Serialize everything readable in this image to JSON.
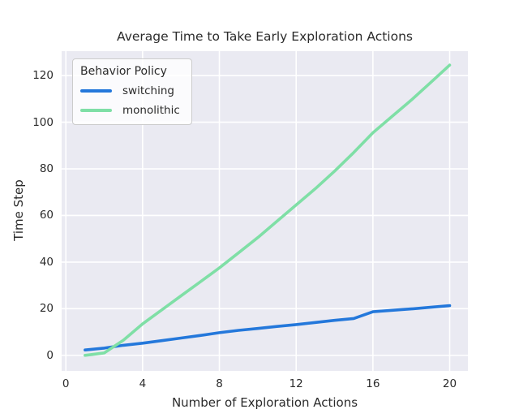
{
  "figure": {
    "title": "Average Time to Take Early Exploration Actions",
    "xlabel": "Number of Exploration Actions",
    "ylabel": "Time Step",
    "legend_title": "Behavior Policy"
  },
  "colors": {
    "plot_background": "#eaeaf2",
    "grid": "#ffffff",
    "figure_background": "#ffffff",
    "text": "#2b2b2b",
    "switching_blue": "#2478db",
    "monolithic_green": "#7fdfa6"
  },
  "chart_data": {
    "type": "line",
    "title": "Average Time to Take Early Exploration Actions",
    "xlabel": "Number of Exploration Actions",
    "ylabel": "Time Step",
    "legend_title": "Behavior Policy",
    "legend_position": "upper left",
    "grid": true,
    "x": [
      1,
      2,
      3,
      4,
      5,
      6,
      7,
      8,
      9,
      10,
      11,
      12,
      13,
      14,
      15,
      16,
      17,
      18,
      19,
      20
    ],
    "series": [
      {
        "name": "switching",
        "color": "#2478db",
        "values": [
          2.3,
          3.1,
          4.3,
          5.2,
          6.3,
          7.4,
          8.5,
          9.7,
          10.7,
          11.5,
          12.4,
          13.2,
          14.1,
          15.0,
          15.8,
          18.7,
          19.3,
          19.9,
          20.6,
          21.3
        ]
      },
      {
        "name": "monolithic",
        "color": "#7fdfa6",
        "values": [
          0,
          1,
          6.5,
          13.5,
          19.5,
          25.5,
          31.5,
          37.5,
          44,
          50.5,
          57.5,
          64.5,
          71.5,
          79,
          87,
          95.5,
          102.5,
          109.5,
          117,
          124.5
        ]
      }
    ],
    "xticks": [
      0,
      4,
      8,
      12,
      16,
      20
    ],
    "yticks": [
      0,
      20,
      40,
      60,
      80,
      100,
      120
    ],
    "xlim": [
      -0.22,
      20.95
    ],
    "ylim": [
      -6.7,
      130.5
    ]
  }
}
